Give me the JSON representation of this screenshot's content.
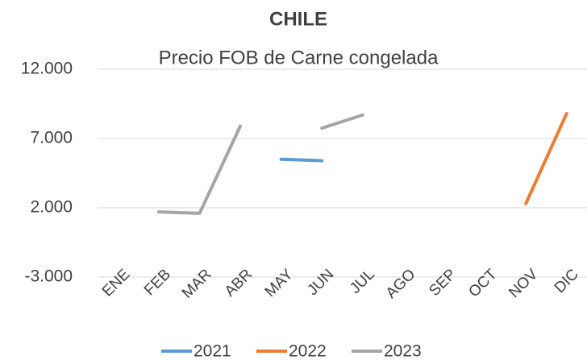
{
  "chart_data": {
    "type": "line",
    "title": "CHILE",
    "subtitle": "Precio FOB de Carne congelada",
    "categories": [
      "ENE",
      "FEB",
      "MAR",
      "ABR",
      "MAY",
      "JUN",
      "JUL",
      "AGO",
      "SEP",
      "OCT",
      "NOV",
      "DIC"
    ],
    "series": [
      {
        "name": "2021",
        "color": "#5b9bd5",
        "values": [
          null,
          null,
          null,
          null,
          5500,
          5400,
          null,
          null,
          null,
          null,
          null,
          null
        ]
      },
      {
        "name": "2022",
        "color": "#ed7d31",
        "values": [
          null,
          null,
          null,
          null,
          null,
          null,
          null,
          null,
          null,
          null,
          2300,
          8800
        ]
      },
      {
        "name": "2023",
        "color": "#a5a5a5",
        "values": [
          null,
          1700,
          1600,
          7900,
          null,
          7750,
          8700,
          null,
          null,
          null,
          null,
          null
        ]
      }
    ],
    "ylim": [
      -3000,
      12000
    ],
    "yticks": [
      {
        "value": -3000,
        "label": "-3.000"
      },
      {
        "value": 2000,
        "label": "2.000"
      },
      {
        "value": 7000,
        "label": "7.000"
      },
      {
        "value": 12000,
        "label": "12.000"
      }
    ],
    "grid": true,
    "legend": "bottom"
  }
}
